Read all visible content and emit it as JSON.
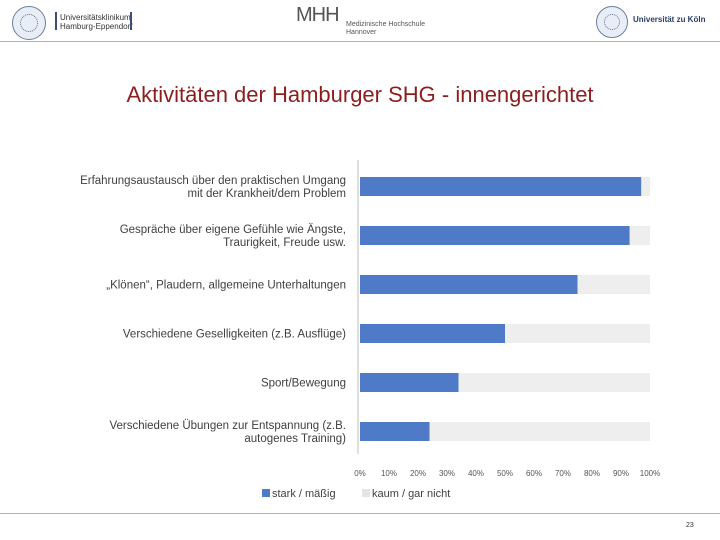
{
  "header": {
    "left_logo_text": [
      "Universitätsklinikum",
      "Hamburg-Eppendorf"
    ],
    "center_logo_mark": "MHH",
    "center_logo_text": [
      "Medizinische Hochschule",
      "Hannover"
    ],
    "right_logo_text": "Universität zu Köln"
  },
  "title": "Aktivitäten der Hamburger SHG - innengerichtet",
  "chart_data": {
    "type": "bar",
    "orientation": "horizontal",
    "stacked": true,
    "categories": [
      [
        "Erfahrungsaustausch über den praktischen Umgang",
        "mit der Krankheit/dem Problem"
      ],
      [
        "Gespräche über eigene Gefühle wie Ängste,",
        "Traurigkeit, Freude usw."
      ],
      [
        "„Klönen“, Plaudern, allgemeine Unterhaltungen"
      ],
      [
        "Verschiedene Geselligkeiten (z.B. Ausflüge)"
      ],
      [
        "Sport/Bewegung"
      ],
      [
        "Verschiedene Übungen zur Entspannung (z.B.",
        "autogenes Training)"
      ]
    ],
    "series": [
      {
        "name": "stark / mäßig",
        "color": "#4e7ac7",
        "values": [
          97,
          93,
          75,
          50,
          34,
          24
        ]
      },
      {
        "name": "kaum / gar nicht",
        "color": "#eeeeee",
        "values": [
          3,
          7,
          25,
          50,
          66,
          76
        ]
      }
    ],
    "xlim": [
      0,
      100
    ],
    "xticks": [
      "0%",
      "10%",
      "20%",
      "30%",
      "40%",
      "50%",
      "60%",
      "70%",
      "80%",
      "90%",
      "100%"
    ],
    "legend_position": "bottom"
  },
  "page_number": "23"
}
